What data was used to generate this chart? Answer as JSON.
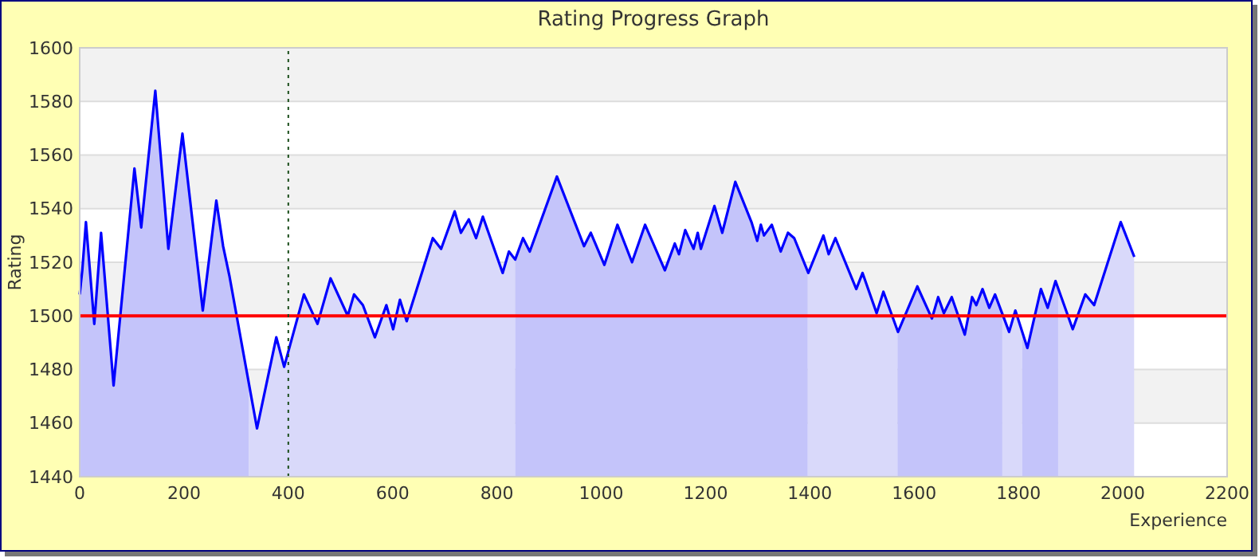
{
  "chart_data": {
    "type": "area",
    "title": "Rating Progress Graph",
    "xlabel": "Experience",
    "ylabel": "Rating",
    "xlim": [
      0,
      2200
    ],
    "xticks": [
      0,
      200,
      400,
      600,
      800,
      1000,
      1200,
      1400,
      1600,
      1800,
      2000,
      2200
    ],
    "ylim": [
      1440,
      1600
    ],
    "yticks": [
      1440,
      1460,
      1480,
      1500,
      1520,
      1540,
      1560,
      1580,
      1600
    ],
    "grid": "y",
    "marker": "none",
    "line_style": "solid",
    "series": [
      {
        "color": "#0000ff",
        "x": [
          0,
          5,
          12,
          28,
          41,
          65,
          105,
          118,
          145,
          170,
          197,
          236,
          262,
          275,
          287,
          340,
          377,
          392,
          430,
          456,
          481,
          514,
          526,
          543,
          566,
          588,
          601,
          614,
          627,
          677,
          693,
          719,
          731,
          746,
          760,
          773,
          811,
          823,
          835,
          850,
          863,
          915,
          967,
          980,
          1006,
          1031,
          1059,
          1084,
          1122,
          1141,
          1149,
          1161,
          1177,
          1185,
          1191,
          1217,
          1232,
          1257,
          1288,
          1299,
          1306,
          1312,
          1327,
          1344,
          1358,
          1370,
          1397,
          1426,
          1436,
          1449,
          1489,
          1501,
          1528,
          1541,
          1569,
          1606,
          1634,
          1646,
          1657,
          1672,
          1697,
          1711,
          1719,
          1731,
          1744,
          1755,
          1782,
          1794,
          1817,
          1843,
          1856,
          1871,
          1904,
          1928,
          1945,
          1996,
          2022
        ],
        "values": [
          1508,
          1517,
          1535,
          1497,
          1531,
          1474,
          1555,
          1533,
          1584,
          1525,
          1568,
          1502,
          1543,
          1526,
          1515,
          1458,
          1492,
          1481,
          1508,
          1497,
          1514,
          1500,
          1508,
          1504,
          1492,
          1504,
          1495,
          1506,
          1498,
          1529,
          1525,
          1539,
          1531,
          1536,
          1529,
          1537,
          1516,
          1524,
          1521,
          1529,
          1524,
          1552,
          1526,
          1531,
          1519,
          1534,
          1520,
          1534,
          1517,
          1527,
          1523,
          1532,
          1525,
          1531,
          1525,
          1541,
          1531,
          1550,
          1535,
          1528,
          1534,
          1530,
          1534,
          1524,
          1531,
          1529,
          1516,
          1530,
          1523,
          1529,
          1510,
          1516,
          1501,
          1509,
          1494,
          1511,
          1499,
          1507,
          1501,
          1507,
          1493,
          1507,
          1504,
          1510,
          1503,
          1508,
          1494,
          1502,
          1488,
          1510,
          1503,
          1513,
          1495,
          1508,
          1504,
          1535,
          1522
        ]
      }
    ],
    "bands": [
      {
        "axis": "x",
        "from": 0,
        "to": 324,
        "color": "#ccccfa"
      },
      {
        "axis": "x",
        "from": 324,
        "to": 835,
        "color": "#e2e2fa"
      },
      {
        "axis": "x",
        "from": 835,
        "to": 1396,
        "color": "#ccccfa"
      },
      {
        "axis": "x",
        "from": 1396,
        "to": 1568,
        "color": "#e2e2fa"
      },
      {
        "axis": "x",
        "from": 1568,
        "to": 1769,
        "color": "#ccccfa"
      },
      {
        "axis": "x",
        "from": 1769,
        "to": 1807,
        "color": "#e2e2fa"
      },
      {
        "axis": "x",
        "from": 1807,
        "to": 1876,
        "color": "#ccccfa"
      },
      {
        "axis": "x",
        "from": 1876,
        "to": 2022,
        "color": "#e2e2fa"
      }
    ],
    "ref_lines": [
      {
        "axis": "y",
        "value": 1500,
        "color": "#ff0000",
        "line_style": "solid"
      },
      {
        "axis": "x",
        "value": 400,
        "color": "#1a4d1a",
        "line_style": "dotted"
      }
    ]
  }
}
